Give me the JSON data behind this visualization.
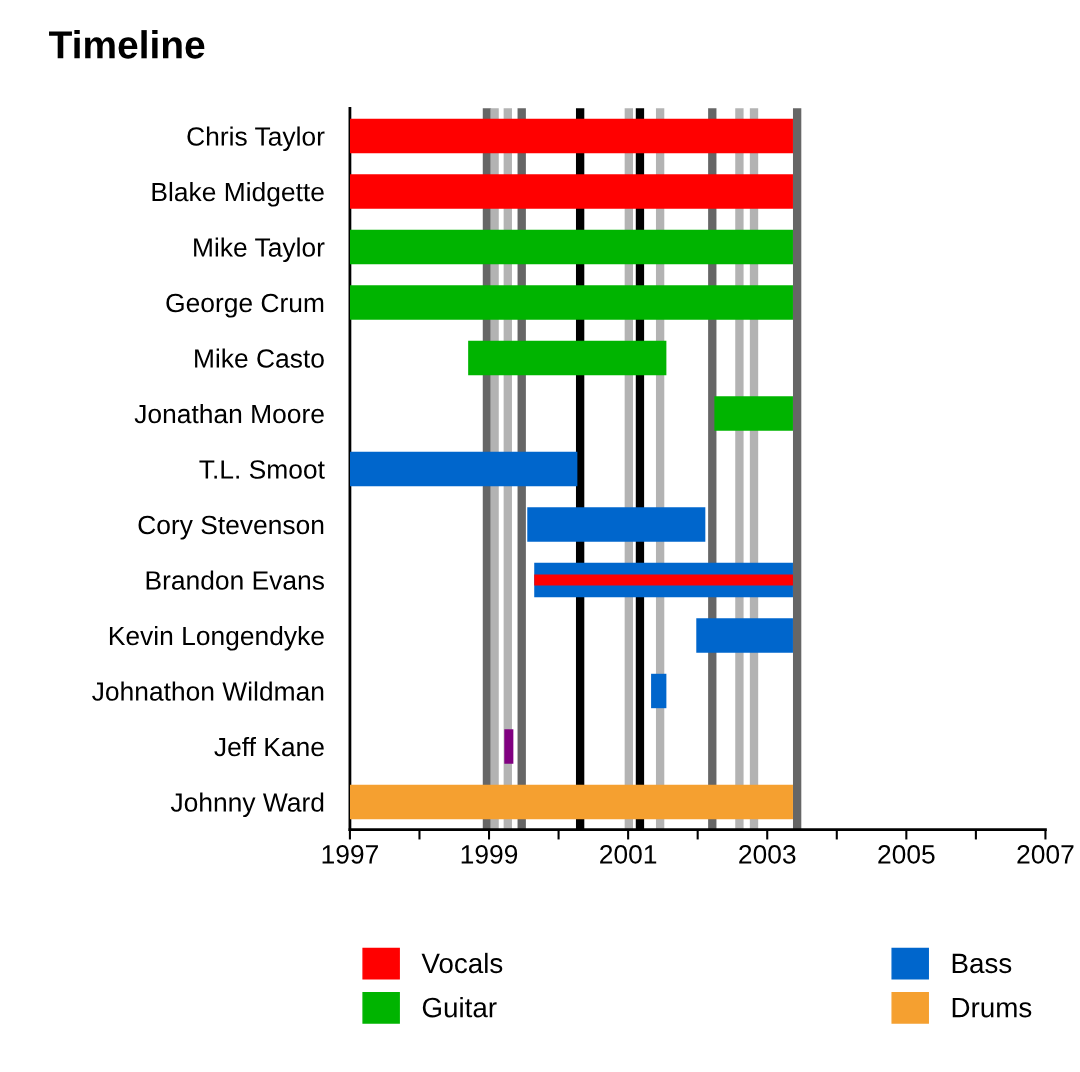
{
  "chart_data": {
    "type": "bar",
    "orientation": "horizontal",
    "title": "Timeline",
    "categories": [
      "Chris Taylor",
      "Blake Midgette",
      "Mike Taylor",
      "George Crum",
      "Mike Casto",
      "Jonathan Moore",
      "T.L. Smoot",
      "Cory Stevenson",
      "Brandon Evans",
      "Kevin Longendyke",
      "Johnathon Wildman",
      "Jeff Kane",
      "Johnny Ward"
    ],
    "series": [
      {
        "name": "Vocals",
        "color": "#ff0000",
        "base": [
          1997,
          1997,
          null,
          null,
          null,
          null,
          null,
          null,
          1999.65,
          null,
          null,
          null,
          null
        ],
        "values": [
          6.37,
          6.37,
          null,
          null,
          null,
          null,
          null,
          null,
          3.72,
          null,
          null,
          null,
          null
        ]
      },
      {
        "name": "Guitar",
        "color": "#00b400",
        "base": [
          null,
          null,
          1997,
          1997,
          1998.7,
          2002.24,
          null,
          null,
          null,
          null,
          null,
          null,
          null
        ],
        "values": [
          null,
          null,
          6.37,
          6.37,
          2.85,
          1.13,
          null,
          null,
          null,
          null,
          null,
          null,
          null
        ]
      },
      {
        "name": "Bass",
        "color": "#0066cc",
        "base": [
          null,
          null,
          null,
          null,
          null,
          null,
          1997,
          1999.55,
          1999.65,
          2001.98,
          2001.33,
          null,
          null
        ],
        "values": [
          null,
          null,
          null,
          null,
          null,
          null,
          3.27,
          2.56,
          3.72,
          1.39,
          0.22,
          null,
          null
        ]
      },
      {
        "name": "Drums",
        "color": "#f5a030",
        "base": [
          null,
          null,
          null,
          null,
          null,
          null,
          null,
          null,
          null,
          null,
          null,
          null,
          1997
        ],
        "values": [
          null,
          null,
          null,
          null,
          null,
          null,
          null,
          null,
          null,
          null,
          null,
          null,
          6.37
        ]
      },
      {
        "color": "#800080",
        "base": [
          null,
          null,
          null,
          null,
          null,
          null,
          null,
          null,
          null,
          null,
          null,
          1999.22,
          null
        ],
        "values": [
          null,
          null,
          null,
          null,
          null,
          null,
          null,
          null,
          null,
          null,
          null,
          0.13,
          null
        ]
      }
    ],
    "xlim": [
      1997,
      2007
    ],
    "xticks": [
      1997,
      {
        "value": 1998,
        "label": null
      },
      1999,
      {
        "value": 2000,
        "label": null
      },
      2001,
      {
        "value": 2002,
        "label": null
      },
      2003,
      {
        "value": 2004,
        "label": null
      },
      2005,
      {
        "value": 2006,
        "label": null
      },
      2007
    ],
    "ref_lines": [
      {
        "axis": "x",
        "value": 1998.97,
        "color": "#666666"
      },
      {
        "axis": "x",
        "value": 1999.08,
        "color": "#b3b3b3"
      },
      {
        "axis": "x",
        "value": 1999.27,
        "color": "#b3b3b3"
      },
      {
        "axis": "x",
        "value": 1999.47,
        "color": "#666666"
      },
      {
        "axis": "x",
        "value": 2000.31,
        "color": "#000000"
      },
      {
        "axis": "x",
        "value": 2001.01,
        "color": "#b3b3b3"
      },
      {
        "axis": "x",
        "value": 2001.17,
        "color": "#000000"
      },
      {
        "axis": "x",
        "value": 2001.46,
        "color": "#b3b3b3"
      },
      {
        "axis": "x",
        "value": 2002.21,
        "color": "#666666"
      },
      {
        "axis": "x",
        "value": 2002.6,
        "color": "#b3b3b3"
      },
      {
        "axis": "x",
        "value": 2002.81,
        "color": "#b3b3b3"
      },
      {
        "axis": "x",
        "value": 2003.43,
        "color": "#666666"
      }
    ],
    "grid": false,
    "legend": "bottom"
  }
}
